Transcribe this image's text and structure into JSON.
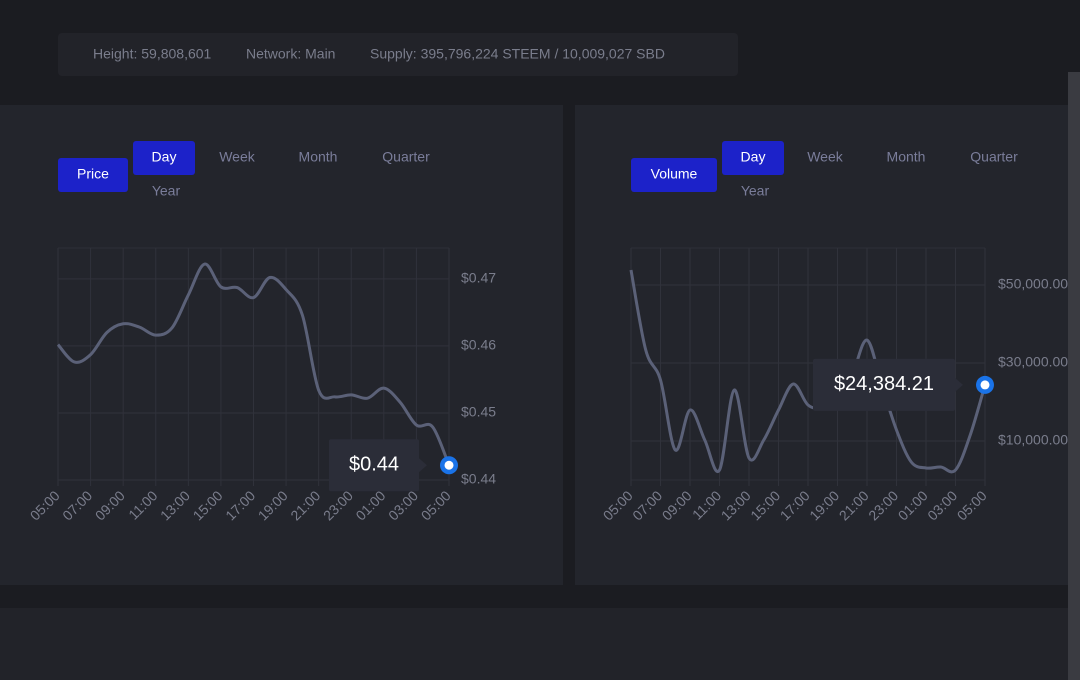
{
  "stats": [
    "Height: 59,808,601",
    "Network: Main",
    "Supply: 395,796,224 STEEM / 10,009,027 SBD"
  ],
  "chart_data": [
    {
      "type": "line",
      "metric_button": "Price",
      "periods": [
        "Day",
        "Week",
        "Month",
        "Quarter",
        "Year"
      ],
      "active_period": 0,
      "categories": [
        "05:00",
        null,
        "07:00",
        null,
        "09:00",
        null,
        "11:00",
        null,
        "13:00",
        null,
        "15:00",
        null,
        "17:00",
        null,
        "19:00",
        null,
        "21:00",
        null,
        "23:00",
        null,
        "01:00",
        null,
        "03:00",
        null,
        "05:00"
      ],
      "values": [
        0.4602,
        0.4576,
        0.4587,
        0.462,
        0.4633,
        0.4628,
        0.4616,
        0.4627,
        0.4676,
        0.4722,
        0.4688,
        0.4687,
        0.4672,
        0.4702,
        0.4684,
        0.4646,
        0.4534,
        0.4524,
        0.4527,
        0.4522,
        0.4537,
        0.4516,
        0.4482,
        0.4479,
        0.4422
      ],
      "color": "#5b6178",
      "ylim": [
        0.44,
        0.4746
      ],
      "yticks": [
        {
          "value": 0.44,
          "label": "$0.44"
        },
        {
          "value": 0.45,
          "label": "$0.45"
        },
        {
          "value": 0.46,
          "label": "$0.46"
        },
        {
          "value": 0.47,
          "label": "$0.47"
        }
      ],
      "tooltip": "$0.44",
      "grid": true
    },
    {
      "type": "line",
      "metric_button": "Volume",
      "periods": [
        "Day",
        "Week",
        "Month",
        "Quarter",
        "Year"
      ],
      "active_period": 0,
      "categories": [
        "05:00",
        null,
        "07:00",
        null,
        "09:00",
        null,
        "11:00",
        null,
        "13:00",
        null,
        "15:00",
        null,
        "17:00",
        null,
        "19:00",
        null,
        "21:00",
        null,
        "23:00",
        null,
        "01:00",
        null,
        "03:00",
        null,
        "05:00"
      ],
      "values": [
        53850,
        33330,
        25640,
        7700,
        17950,
        10260,
        2560,
        23080,
        5640,
        10260,
        17950,
        24620,
        19230,
        18460,
        20510,
        26920,
        35900,
        24360,
        12820,
        4620,
        3080,
        3330,
        2560,
        11540,
        24384.21
      ],
      "color": "#5b6178",
      "ylim": [
        0,
        59500
      ],
      "yticks": [
        {
          "value": 10000,
          "label": "$10,000.00"
        },
        {
          "value": 30000,
          "label": "$30,000.00"
        },
        {
          "value": 50000,
          "label": "$50,000.00"
        }
      ],
      "tooltip": "$24,384.21",
      "grid": true
    }
  ]
}
